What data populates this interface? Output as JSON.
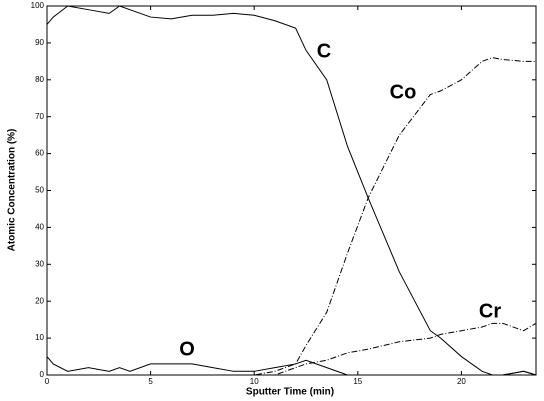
{
  "chart_data": {
    "type": "line",
    "xlabel": "Sputter Time (min)",
    "ylabel": "Atomic Concentration (%)",
    "x": [
      0,
      0.3,
      1,
      2,
      3,
      3.5,
      4,
      5,
      6,
      7,
      8,
      9,
      10,
      11,
      12,
      12.5,
      13.5,
      14.5,
      15.5,
      17,
      18.5,
      19,
      20,
      21,
      21.5,
      22,
      23,
      23.6
    ],
    "series": [
      {
        "name": "C",
        "color": "#000000",
        "values": [
          95,
          97,
          100,
          99,
          98,
          100,
          99,
          97,
          96.5,
          97.5,
          97.5,
          98,
          97.5,
          96,
          94,
          88,
          80,
          62,
          48,
          28,
          12,
          10,
          5,
          1,
          0,
          0,
          1,
          0
        ]
      },
      {
        "name": "Co",
        "color": "#000000",
        "values": [
          0,
          0,
          0,
          0,
          0,
          0,
          0,
          0,
          0,
          0,
          0,
          0,
          0,
          1,
          3,
          8,
          17,
          33,
          48,
          65,
          76,
          77,
          80,
          85,
          86,
          85.5,
          85,
          85
        ]
      },
      {
        "name": "Cr",
        "color": "#000000",
        "values": [
          0,
          0,
          0,
          0,
          0,
          0,
          0,
          0,
          0,
          0,
          0,
          0,
          0,
          0,
          2,
          3,
          4,
          6,
          7,
          9,
          10,
          11,
          12,
          13,
          14,
          14,
          12,
          14
        ]
      },
      {
        "name": "O",
        "color": "#000000",
        "values": [
          5,
          3,
          1,
          2,
          1,
          2,
          1,
          3,
          3,
          3,
          2,
          1,
          1,
          2,
          3,
          4,
          2,
          0,
          0,
          0,
          0,
          0,
          0,
          0,
          0,
          0,
          1,
          0
        ]
      }
    ],
    "xlim": [
      0,
      23.6
    ],
    "xticks": [
      0,
      5,
      10,
      15,
      20
    ],
    "ylim": [
      0,
      100
    ],
    "yticks": [
      0,
      10,
      20,
      30,
      40,
      50,
      60,
      70,
      80,
      90,
      100
    ],
    "grid": false
  }
}
